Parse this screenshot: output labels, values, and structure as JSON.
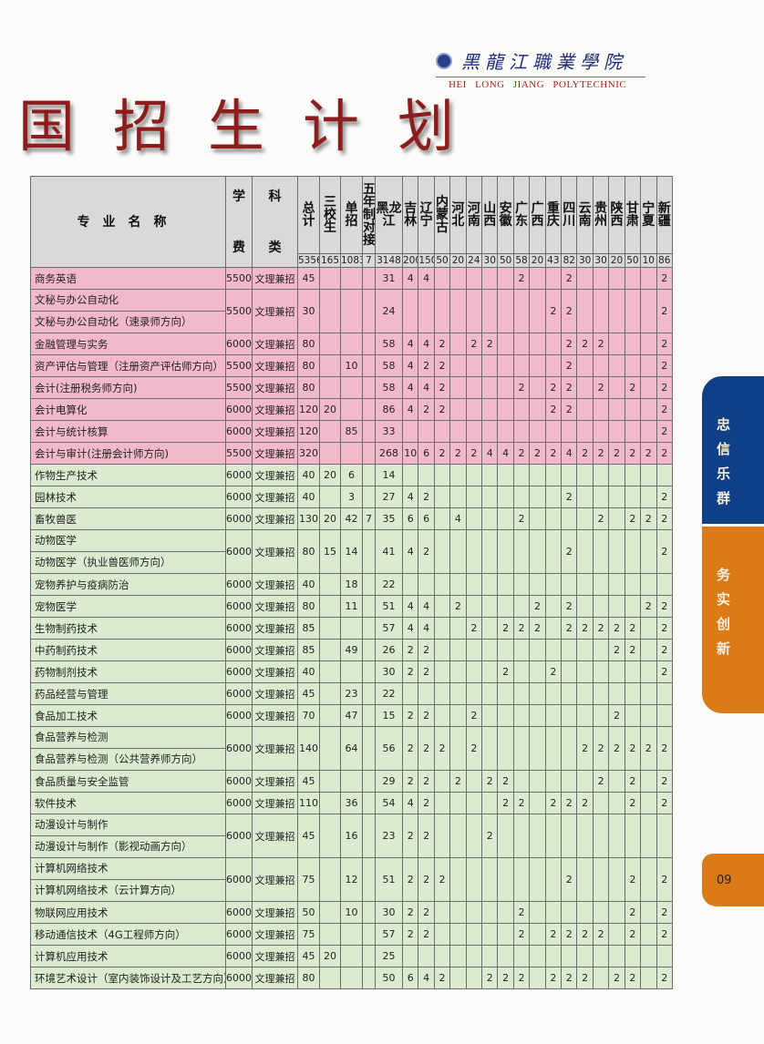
{
  "logo": {
    "cn": "黑龍江職業學院",
    "en": "HEI LONG JIANG POLYTECHNIC"
  },
  "title": "国招生计划",
  "side_tabs": [
    {
      "text": "忠信乐群",
      "color": "#0f3f86"
    },
    {
      "text": "务实创新",
      "color": "#db7b17"
    }
  ],
  "page_number": "09",
  "colors": {
    "pink_rows": "#f2b8cb",
    "green_rows": "#dcebd0",
    "header": "#d9d9d9",
    "title": "#8e1c1c"
  },
  "table": {
    "headers": [
      "专业名称",
      "学费",
      "科类",
      "总计",
      "三校生",
      "单招",
      "五年制对接",
      "黑龙江",
      "吉林",
      "辽宁",
      "内蒙古",
      "河北",
      "河南",
      "山西",
      "安徽",
      "广东",
      "广西",
      "重庆",
      "四川",
      "云南",
      "贵州",
      "陕西",
      "甘肃",
      "宁夏",
      "新疆"
    ],
    "header_pairs": {
      "fee": [
        "学",
        "费"
      ],
      "type": [
        "科",
        "类"
      ]
    },
    "totals": [
      "5356",
      "165",
      "1083",
      "7",
      "3148",
      "200",
      "150",
      "50",
      "20",
      "24",
      "30",
      "50",
      "58",
      "20",
      "43",
      "82",
      "30",
      "30",
      "20",
      "50",
      "10",
      "86"
    ],
    "rows": [
      {
        "group": "pink",
        "names": [
          "商务英语"
        ],
        "values": [
          "5500",
          "文理兼招",
          "45",
          "",
          "",
          "",
          "31",
          "4",
          "4",
          "",
          "",
          "",
          "",
          "",
          "2",
          "",
          "",
          "2",
          "",
          "",
          "",
          "",
          "",
          "2"
        ]
      },
      {
        "group": "pink",
        "names": [
          "文秘与办公自动化",
          "文秘与办公自动化（速录师方向）"
        ],
        "values": [
          "5500",
          "文理兼招",
          "30",
          "",
          "",
          "",
          "24",
          "",
          "",
          "",
          "",
          "",
          "",
          "",
          "",
          "",
          "2",
          "2",
          "",
          "",
          "",
          "",
          "",
          "2"
        ]
      },
      {
        "group": "pink",
        "names": [
          "金融管理与实务"
        ],
        "values": [
          "6000",
          "文理兼招",
          "80",
          "",
          "",
          "",
          "58",
          "4",
          "4",
          "2",
          "",
          "2",
          "2",
          "",
          "",
          "",
          "",
          "2",
          "2",
          "2",
          "",
          "",
          "",
          "2"
        ]
      },
      {
        "group": "pink",
        "names": [
          "资产评估与管理（注册资产评估师方向）"
        ],
        "values": [
          "5500",
          "文理兼招",
          "80",
          "",
          "10",
          "",
          "58",
          "4",
          "2",
          "2",
          "",
          "",
          "",
          "",
          "",
          "",
          "",
          "2",
          "",
          "",
          "",
          "",
          "",
          "2"
        ]
      },
      {
        "group": "pink",
        "names": [
          "会计(注册税务师方向)"
        ],
        "values": [
          "5500",
          "文理兼招",
          "80",
          "",
          "",
          "",
          "58",
          "4",
          "4",
          "2",
          "",
          "",
          "",
          "",
          "2",
          "",
          "2",
          "2",
          "",
          "2",
          "",
          "2",
          "",
          "2"
        ]
      },
      {
        "group": "pink",
        "names": [
          "会计电算化"
        ],
        "values": [
          "6000",
          "文理兼招",
          "120",
          "20",
          "",
          "",
          "86",
          "4",
          "2",
          "2",
          "",
          "",
          "",
          "",
          "",
          "",
          "2",
          "2",
          "",
          "",
          "",
          "",
          "",
          "2"
        ]
      },
      {
        "group": "pink",
        "names": [
          "会计与统计核算"
        ],
        "values": [
          "6000",
          "文理兼招",
          "120",
          "",
          "85",
          "",
          "33",
          "",
          "",
          "",
          "",
          "",
          "",
          "",
          "",
          "",
          "",
          "",
          "",
          "",
          "",
          "",
          "",
          "2"
        ]
      },
      {
        "group": "pink",
        "names": [
          "会计与审计(注册会计师方向)"
        ],
        "values": [
          "5500",
          "文理兼招",
          "320",
          "",
          "",
          "",
          "268",
          "10",
          "6",
          "2",
          "2",
          "2",
          "4",
          "4",
          "2",
          "2",
          "2",
          "4",
          "2",
          "2",
          "2",
          "2",
          "2",
          "2"
        ]
      },
      {
        "group": "green",
        "names": [
          "作物生产技术"
        ],
        "values": [
          "6000",
          "文理兼招",
          "40",
          "20",
          "6",
          "",
          "14",
          "",
          "",
          "",
          "",
          "",
          "",
          "",
          "",
          "",
          "",
          "",
          "",
          "",
          "",
          "",
          "",
          ""
        ]
      },
      {
        "group": "green",
        "names": [
          "园林技术"
        ],
        "values": [
          "6000",
          "文理兼招",
          "40",
          "",
          "3",
          "",
          "27",
          "4",
          "2",
          "",
          "",
          "",
          "",
          "",
          "",
          "",
          "",
          "2",
          "",
          "",
          "",
          "",
          "",
          "2"
        ]
      },
      {
        "group": "green",
        "names": [
          "畜牧兽医"
        ],
        "values": [
          "6000",
          "文理兼招",
          "130",
          "20",
          "42",
          "7",
          "35",
          "6",
          "6",
          "",
          "4",
          "",
          "",
          "",
          "2",
          "",
          "",
          "",
          "",
          "2",
          "",
          "2",
          "2",
          "2"
        ]
      },
      {
        "group": "green",
        "names": [
          "动物医学",
          "动物医学（执业兽医师方向）"
        ],
        "values": [
          "6000",
          "文理兼招",
          "80",
          "15",
          "14",
          "",
          "41",
          "4",
          "2",
          "",
          "",
          "",
          "",
          "",
          "",
          "",
          "",
          "2",
          "",
          "",
          "",
          "",
          "",
          "2"
        ]
      },
      {
        "group": "green",
        "names": [
          "宠物养护与疫病防治"
        ],
        "values": [
          "6000",
          "文理兼招",
          "40",
          "",
          "18",
          "",
          "22",
          "",
          "",
          "",
          "",
          "",
          "",
          "",
          "",
          "",
          "",
          "",
          "",
          "",
          "",
          "",
          "",
          ""
        ]
      },
      {
        "group": "green",
        "names": [
          "宠物医学"
        ],
        "values": [
          "6000",
          "文理兼招",
          "80",
          "",
          "11",
          "",
          "51",
          "4",
          "4",
          "",
          "2",
          "",
          "",
          "",
          "",
          "2",
          "",
          "2",
          "",
          "",
          "",
          "",
          "2",
          "2"
        ]
      },
      {
        "group": "green",
        "names": [
          "生物制药技术"
        ],
        "values": [
          "6000",
          "文理兼招",
          "85",
          "",
          "",
          "",
          "57",
          "4",
          "4",
          "",
          "",
          "2",
          "",
          "2",
          "2",
          "2",
          "",
          "2",
          "2",
          "2",
          "2",
          "2",
          "",
          "2"
        ]
      },
      {
        "group": "green",
        "names": [
          "中药制药技术"
        ],
        "values": [
          "6000",
          "文理兼招",
          "85",
          "",
          "49",
          "",
          "26",
          "2",
          "2",
          "",
          "",
          "",
          "",
          "",
          "",
          "",
          "",
          "",
          "",
          "",
          "2",
          "2",
          "",
          "2"
        ]
      },
      {
        "group": "green",
        "names": [
          "药物制剂技术"
        ],
        "values": [
          "6000",
          "文理兼招",
          "40",
          "",
          "",
          "",
          "30",
          "2",
          "2",
          "",
          "",
          "",
          "",
          "2",
          "",
          "",
          "2",
          "",
          "",
          "",
          "",
          "",
          "",
          "2"
        ]
      },
      {
        "group": "green",
        "names": [
          "药品经营与管理"
        ],
        "values": [
          "6000",
          "文理兼招",
          "45",
          "",
          "23",
          "",
          "22",
          "",
          "",
          "",
          "",
          "",
          "",
          "",
          "",
          "",
          "",
          "",
          "",
          "",
          "",
          "",
          "",
          ""
        ]
      },
      {
        "group": "green",
        "names": [
          "食品加工技术"
        ],
        "values": [
          "6000",
          "文理兼招",
          "70",
          "",
          "47",
          "",
          "15",
          "2",
          "2",
          "",
          "",
          "2",
          "",
          "",
          "",
          "",
          "",
          "",
          "",
          "",
          "2",
          "",
          "",
          ""
        ]
      },
      {
        "group": "green",
        "names": [
          "食品营养与检测",
          "食品营养与检测（公共营养师方向）"
        ],
        "values": [
          "6000",
          "文理兼招",
          "140",
          "",
          "64",
          "",
          "56",
          "2",
          "2",
          "2",
          "",
          "2",
          "",
          "",
          "",
          "",
          "",
          "",
          "2",
          "2",
          "2",
          "2",
          "2",
          "2"
        ]
      },
      {
        "group": "green",
        "names": [
          "食品质量与安全监管"
        ],
        "values": [
          "6000",
          "文理兼招",
          "45",
          "",
          "",
          "",
          "29",
          "2",
          "2",
          "",
          "2",
          "",
          "2",
          "2",
          "",
          "",
          "",
          "",
          "",
          "2",
          "",
          "2",
          "",
          "2"
        ]
      },
      {
        "group": "green",
        "names": [
          "软件技术"
        ],
        "values": [
          "6000",
          "文理兼招",
          "110",
          "",
          "36",
          "",
          "54",
          "4",
          "2",
          "",
          "",
          "",
          "",
          "2",
          "2",
          "",
          "2",
          "2",
          "2",
          "",
          "",
          "2",
          "",
          "2"
        ]
      },
      {
        "group": "green",
        "names": [
          "动漫设计与制作",
          "动漫设计与制作（影视动画方向）"
        ],
        "values": [
          "6000",
          "文理兼招",
          "45",
          "",
          "16",
          "",
          "23",
          "2",
          "2",
          "",
          "",
          "",
          "2",
          "",
          "",
          "",
          "",
          "",
          "",
          "",
          "",
          "",
          "",
          ""
        ]
      },
      {
        "group": "green",
        "names": [
          "计算机网络技术",
          "计算机网络技术（云计算方向）"
        ],
        "values": [
          "6000",
          "文理兼招",
          "75",
          "",
          "12",
          "",
          "51",
          "2",
          "2",
          "2",
          "",
          "",
          "",
          "",
          "",
          "",
          "",
          "2",
          "",
          "",
          "",
          "2",
          "",
          "2"
        ]
      },
      {
        "group": "green",
        "names": [
          "物联网应用技术"
        ],
        "values": [
          "6000",
          "文理兼招",
          "50",
          "",
          "10",
          "",
          "30",
          "2",
          "2",
          "",
          "",
          "",
          "",
          "",
          "2",
          "",
          "",
          "",
          "",
          "",
          "",
          "2",
          "",
          "2"
        ]
      },
      {
        "group": "green",
        "names": [
          "移动通信技术（4G工程师方向）"
        ],
        "values": [
          "6000",
          "文理兼招",
          "75",
          "",
          "",
          "",
          "57",
          "2",
          "2",
          "",
          "",
          "",
          "",
          "",
          "2",
          "",
          "2",
          "2",
          "2",
          "2",
          "",
          "2",
          "",
          "2"
        ]
      },
      {
        "group": "green",
        "names": [
          "计算机应用技术"
        ],
        "values": [
          "6000",
          "文理兼招",
          "45",
          "20",
          "",
          "",
          "25",
          "",
          "",
          "",
          "",
          "",
          "",
          "",
          "",
          "",
          "",
          "",
          "",
          "",
          "",
          "",
          "",
          ""
        ]
      },
      {
        "group": "green",
        "names": [
          "环境艺术设计（室内装饰设计及工艺方向）"
        ],
        "values": [
          "6000",
          "文理兼招",
          "80",
          "",
          "",
          "",
          "50",
          "6",
          "4",
          "2",
          "",
          "",
          "2",
          "2",
          "2",
          "",
          "2",
          "2",
          "2",
          "",
          "2",
          "2",
          "",
          "2"
        ]
      }
    ]
  }
}
